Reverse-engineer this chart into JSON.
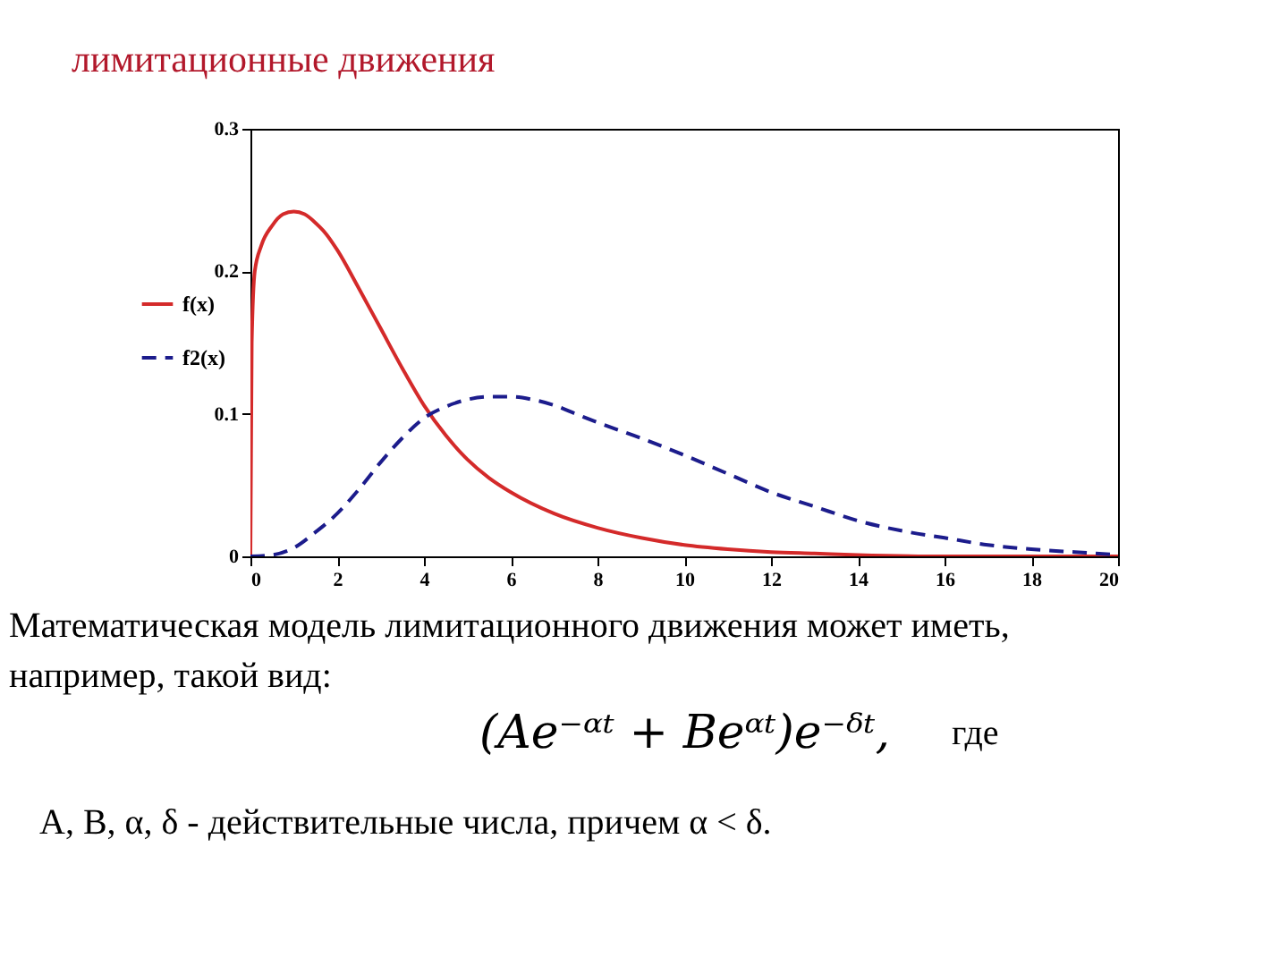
{
  "chart_data": {
    "type": "line",
    "title": "лимитационные движения",
    "xlim": [
      0,
      20
    ],
    "xticks": [
      0,
      2,
      4,
      6,
      8,
      10,
      12,
      14,
      16,
      18,
      20
    ],
    "ylim": [
      0,
      0.3
    ],
    "yticks": [
      0,
      0.1,
      0.2,
      0.3
    ],
    "legend": "left",
    "series": [
      {
        "name": "f(x)",
        "color": "#d42a2a",
        "line_style": "solid",
        "x": [
          0,
          0.03,
          0.1,
          0.25,
          0.5,
          0.75,
          1,
          1.25,
          1.5,
          1.75,
          2,
          2.5,
          3,
          3.5,
          4,
          4.5,
          5,
          5.5,
          6,
          7,
          8,
          9,
          10,
          11,
          12,
          13,
          14,
          16,
          18,
          20
        ],
        "values": [
          0,
          0.15,
          0.2,
          0.218,
          0.232,
          0.24,
          0.242,
          0.24,
          0.234,
          0.226,
          0.215,
          0.188,
          0.16,
          0.132,
          0.106,
          0.085,
          0.068,
          0.055,
          0.045,
          0.03,
          0.02,
          0.013,
          0.008,
          0.005,
          0.003,
          0.002,
          0.001,
          0,
          0,
          0
        ]
      },
      {
        "name": "f2(x)",
        "color": "#1c1c8c",
        "line_style": "dashed",
        "x": [
          0,
          0.5,
          1,
          1.5,
          2,
          2.5,
          3,
          3.5,
          4,
          4.5,
          5,
          5.5,
          6,
          6.5,
          7,
          7.5,
          8,
          9,
          10,
          11,
          12,
          13,
          14,
          15,
          16,
          17,
          18,
          19,
          20
        ],
        "values": [
          0,
          0.001,
          0.006,
          0.017,
          0.03,
          0.047,
          0.066,
          0.083,
          0.097,
          0.105,
          0.11,
          0.112,
          0.112,
          0.11,
          0.106,
          0.1,
          0.094,
          0.083,
          0.071,
          0.058,
          0.045,
          0.035,
          0.025,
          0.018,
          0.013,
          0.008,
          0.005,
          0.003,
          0.001
        ]
      }
    ],
    "annotations": [
      "Математическая модель лимитационного движения может иметь,",
      "например, такой вид:",
      "(Ae⁻ᵅᵗ + Beᵅᵗ)e⁻ᵟᵗ,",
      "где",
      "A, B, α, δ  - действительные числа, причем  α < δ."
    ]
  }
}
